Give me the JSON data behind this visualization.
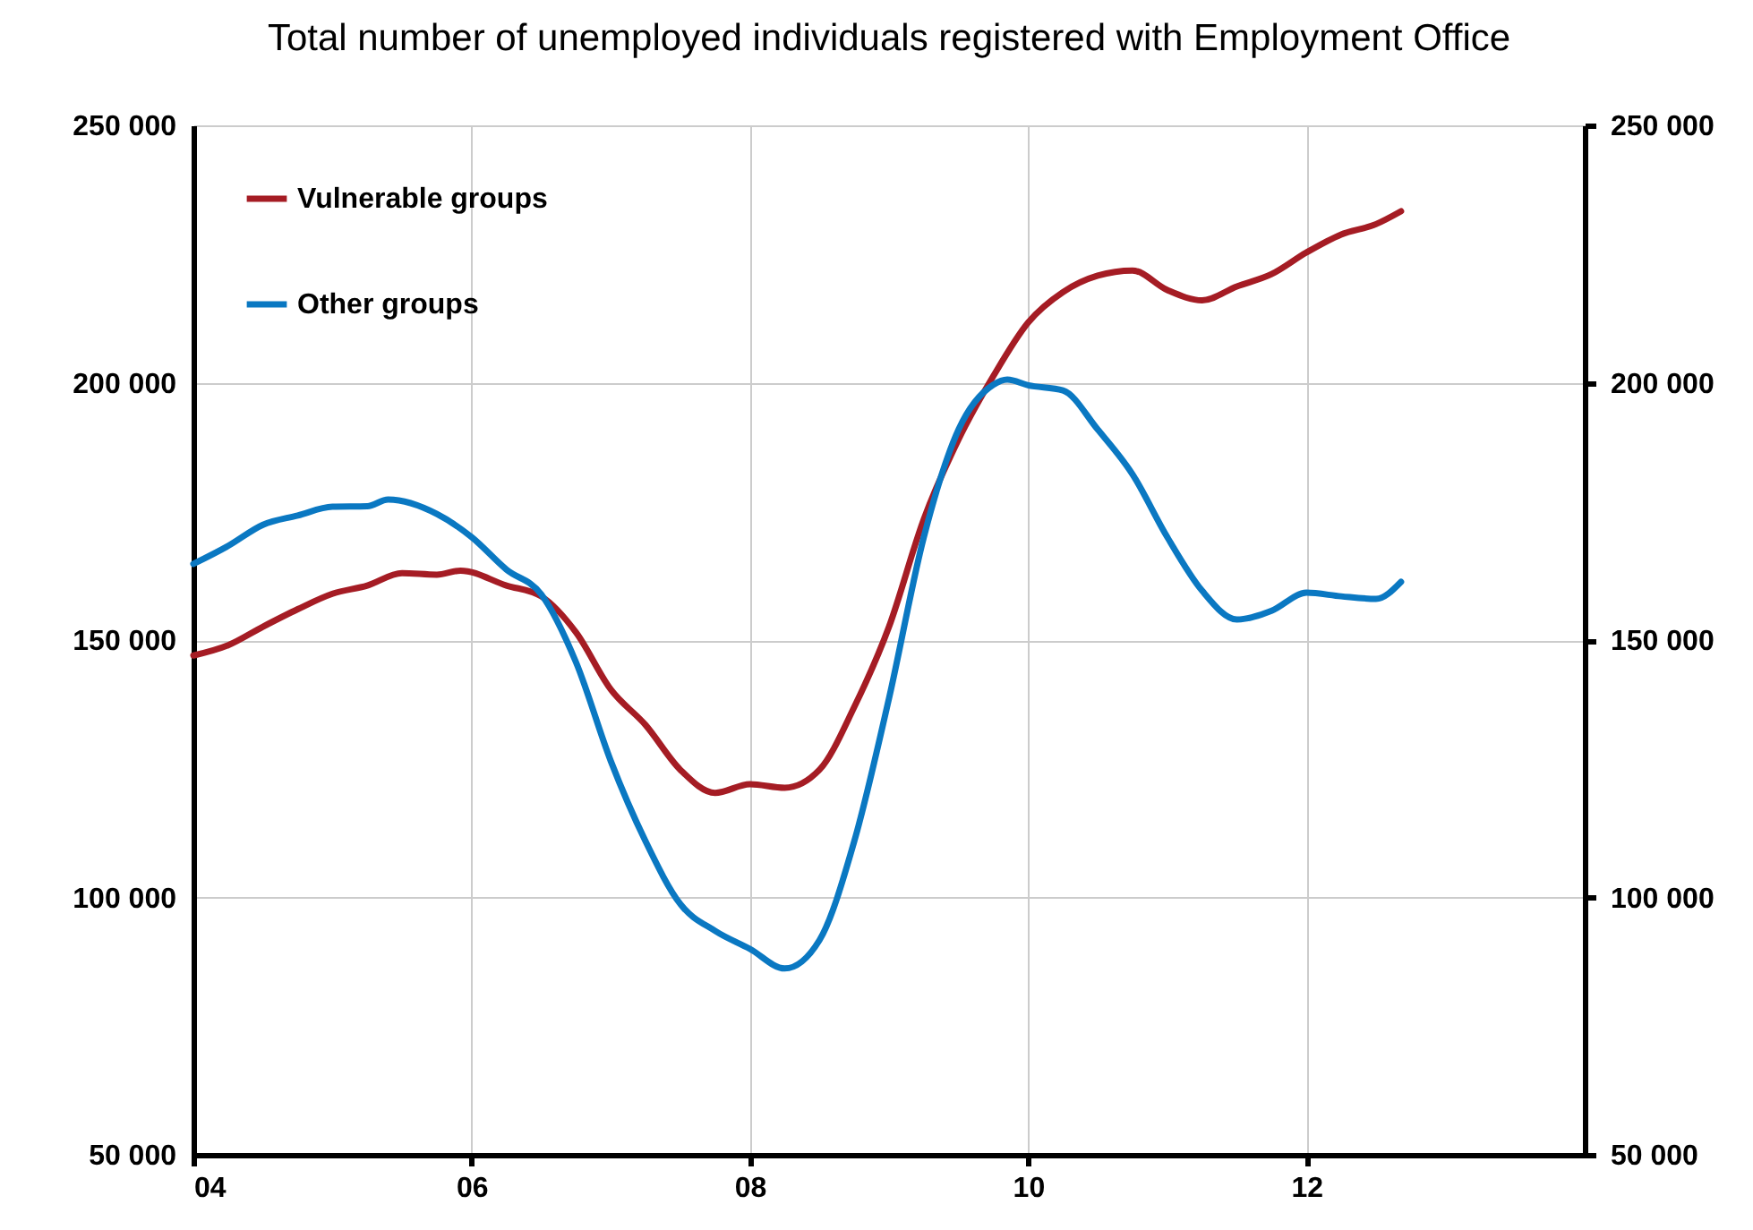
{
  "chart_data": {
    "type": "line",
    "title": "Total number of unemployed individuals registered with Employment Office",
    "xlim": [
      2004,
      2014
    ],
    "xticks": [
      {
        "value": 2004,
        "label": "04"
      },
      {
        "value": 2006,
        "label": "06"
      },
      {
        "value": 2008,
        "label": "08"
      },
      {
        "value": 2010,
        "label": "10"
      },
      {
        "value": 2012,
        "label": "12"
      }
    ],
    "ylim": [
      50000,
      250000
    ],
    "yticks": [
      {
        "value": 50000,
        "label": "50 000"
      },
      {
        "value": 100000,
        "label": "100 000"
      },
      {
        "value": 150000,
        "label": "150 000"
      },
      {
        "value": 200000,
        "label": "200 000"
      },
      {
        "value": 250000,
        "label": "250 000"
      }
    ],
    "y2lim": [
      50000,
      250000
    ],
    "y2ticks": [
      {
        "value": 50000,
        "label": "50 000"
      },
      {
        "value": 100000,
        "label": "100 000"
      },
      {
        "value": 150000,
        "label": "150 000"
      },
      {
        "value": 200000,
        "label": "200 000"
      },
      {
        "value": 250000,
        "label": "250 000"
      }
    ],
    "grid": true,
    "legend": "top left",
    "line_style": "solid",
    "marker": "none",
    "series": [
      {
        "name": "Vulnerable groups",
        "color": "#a51c24",
        "x": [
          2004,
          2004.25,
          2004.5,
          2004.75,
          2005,
          2005.25,
          2005.5,
          2005.75,
          2005.92,
          2006.25,
          2006.5,
          2006.75,
          2007,
          2007.25,
          2007.5,
          2007.75,
          2008,
          2008.25,
          2008.5,
          2008.75,
          2009,
          2009.25,
          2009.5,
          2009.75,
          2010,
          2010.25,
          2010.5,
          2010.75,
          2011,
          2011.25,
          2011.5,
          2011.75,
          2012,
          2012.25,
          2012.5,
          2012.68
        ],
        "values": [
          147000,
          149000,
          152600,
          156000,
          159000,
          160600,
          163000,
          162700,
          163500,
          160600,
          158500,
          151500,
          140400,
          133500,
          124800,
          120300,
          122000,
          121300,
          124800,
          137000,
          152600,
          173500,
          189000,
          201300,
          211700,
          217600,
          220800,
          221800,
          218000,
          216000,
          218700,
          221100,
          225300,
          228800,
          230800,
          233300
        ]
      },
      {
        "name": "Other groups",
        "color": "#0a78c2",
        "x": [
          2004,
          2004.25,
          2004.5,
          2004.75,
          2005,
          2005.25,
          2005.4,
          2005.75,
          2006,
          2006.25,
          2006.5,
          2006.75,
          2007,
          2007.25,
          2007.5,
          2007.75,
          2008,
          2008.25,
          2008.5,
          2008.75,
          2009,
          2009.25,
          2009.5,
          2009.75,
          2009.85,
          2010,
          2010.25,
          2010.5,
          2010.75,
          2011,
          2011.25,
          2011.5,
          2011.75,
          2012,
          2012.25,
          2012.5,
          2012.68
        ],
        "values": [
          164800,
          168300,
          172400,
          174200,
          175900,
          176000,
          177300,
          174500,
          170000,
          163700,
          158900,
          145700,
          126500,
          110900,
          98700,
          93500,
          90000,
          86200,
          91700,
          110900,
          138700,
          170000,
          190900,
          199600,
          200600,
          199500,
          198500,
          190900,
          182200,
          170000,
          159600,
          154000,
          155700,
          159200,
          158500,
          158000,
          161300
        ]
      }
    ]
  }
}
